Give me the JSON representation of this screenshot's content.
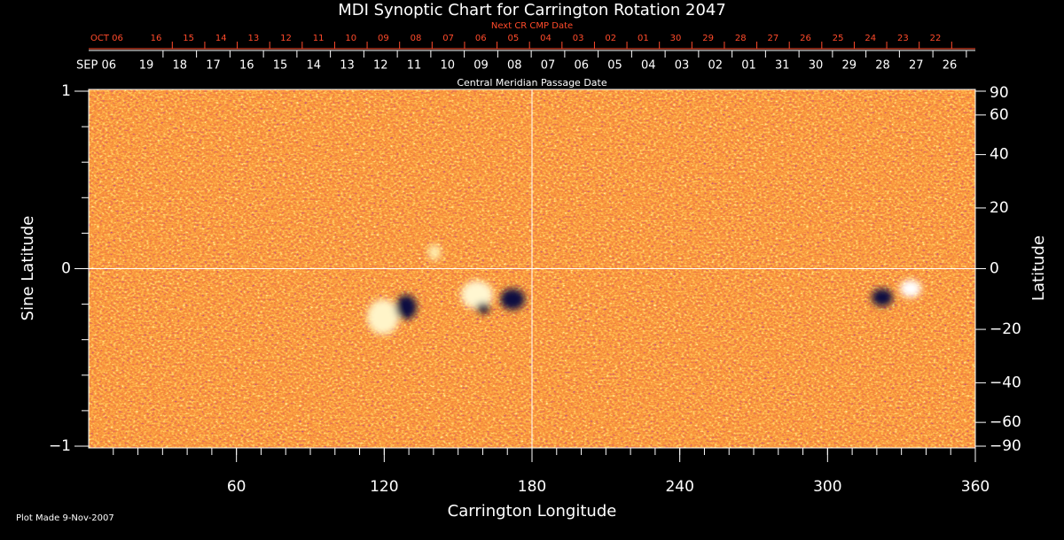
{
  "chart_data": {
    "type": "synoptic-map",
    "title": "MDI Synoptic Chart for Carrington Rotation 2047",
    "xlabel": "Carrington Longitude",
    "ylabel": "Sine Latitude",
    "y2label": "Latitude",
    "xlim": [
      0,
      360
    ],
    "xticks": [
      60,
      120,
      180,
      240,
      300,
      360
    ],
    "ylim": [
      -1,
      1
    ],
    "yticks": [
      {
        "value": -1,
        "label": "−1"
      },
      0,
      1
    ],
    "y2scale": "sine",
    "y2lim": [
      -90,
      90
    ],
    "y2ticks": [
      90,
      60,
      40,
      20,
      0,
      {
        "value": -20,
        "label": "−20"
      },
      {
        "value": -40,
        "label": "−40"
      },
      {
        "value": -60,
        "label": "−60"
      },
      {
        "value": -90,
        "label": "−90"
      }
    ],
    "reference_lines": {
      "x": 180,
      "y": 0
    },
    "cmp_dates": {
      "label": "Central Meridian Passage Date",
      "start": "SEP 06",
      "color": "#ffffff",
      "days": [
        "19",
        "18",
        "17",
        "16",
        "15",
        "14",
        "13",
        "12",
        "11",
        "10",
        "09",
        "08",
        "07",
        "06",
        "05",
        "04",
        "03",
        "02",
        "01",
        "31",
        "30",
        "29",
        "28",
        "27",
        "26"
      ]
    },
    "next_cr_dates": {
      "label": "Next CR CMP Date",
      "start": "OCT 06",
      "color": "#ff4a2a",
      "days": [
        "16",
        "15",
        "14",
        "13",
        "12",
        "11",
        "10",
        "09",
        "08",
        "07",
        "06",
        "05",
        "04",
        "03",
        "02",
        "01",
        "30",
        "29",
        "28",
        "27",
        "26",
        "25",
        "24",
        "23",
        "22"
      ]
    }
  },
  "footer": "Plot Made  9-Nov-2007"
}
